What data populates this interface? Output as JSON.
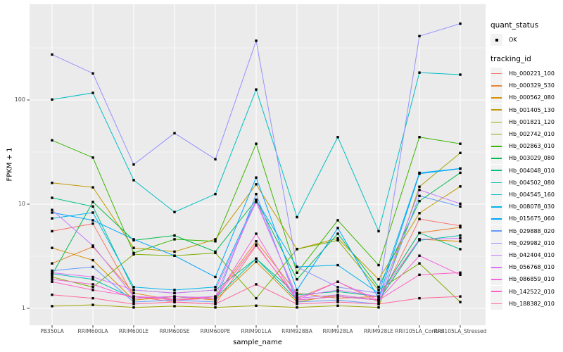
{
  "chart_data": {
    "type": "line",
    "title": "",
    "xlabel": "sample_name",
    "ylabel": "FPKM + 1",
    "y_scale": "log10",
    "y_ticks": [
      1,
      10,
      100
    ],
    "y_tick_labels": [
      "1",
      "10",
      "100"
    ],
    "y_minor": [
      3.1623,
      31.623,
      316.23
    ],
    "grid": "on",
    "legend_position": "right",
    "point_shape": "filled-square",
    "colors": {
      "panel_bg": "#EBEBEB",
      "grid_major": "#FFFFFF",
      "grid_minor": "#FFFFFF",
      "tick_text": "#4D4D4D",
      "tick_mark": "#333333",
      "point": "#000000",
      "legend_key_bg": "#F2F2F2"
    },
    "legend": {
      "quant_status_title": "quant_status",
      "quant_status_items": [
        "OK"
      ],
      "tracking_title": "tracking_id"
    },
    "categories": [
      "PB350LA",
      "RRIM600LA",
      "RRIM600LE",
      "RRIM600SE",
      "RRIM600PE",
      "RRIM901LA",
      "RRIM928BA",
      "RRIM928LA",
      "RRIM928LE",
      "RRII105LA_Control",
      "RRII105LA_Stressed"
    ],
    "series": [
      {
        "name": "Hb_000221_100",
        "color": "#F8766D",
        "values": [
          5.5,
          6.5,
          1.3,
          1.15,
          1.1,
          4.0,
          1.25,
          1.8,
          1.15,
          7.2,
          6.2
        ]
      },
      {
        "name": "Hb_000329_530",
        "color": "#EA8331",
        "values": [
          2.7,
          3.9,
          1.4,
          1.2,
          1.3,
          4.4,
          1.4,
          1.25,
          1.3,
          5.3,
          6.0
        ]
      },
      {
        "name": "Hb_000562_080",
        "color": "#D89000",
        "values": [
          3.8,
          2.9,
          1.2,
          1.3,
          1.2,
          2.8,
          1.15,
          1.35,
          1.2,
          4.6,
          4.4
        ]
      },
      {
        "name": "Hb_001405_130",
        "color": "#C09B00",
        "values": [
          16,
          14.5,
          3.8,
          3.5,
          4.6,
          15.5,
          3.7,
          4.7,
          1.9,
          8.2,
          14.8
        ]
      },
      {
        "name": "Hb_001821_120",
        "color": "#A3A500",
        "values": [
          1.05,
          1.08,
          1.02,
          1.05,
          1.02,
          1.06,
          1.02,
          1.06,
          1.02,
          14.7,
          31
        ]
      },
      {
        "name": "Hb_002742_010",
        "color": "#7CAE00",
        "values": [
          2.0,
          1.6,
          3.3,
          3.2,
          3.4,
          1.25,
          3.7,
          4.5,
          1.5,
          2.7,
          1.15
        ]
      },
      {
        "name": "Hb_002863_010",
        "color": "#39B600",
        "values": [
          41,
          28,
          3.4,
          4.6,
          4.4,
          38,
          2.2,
          7.0,
          2.6,
          44,
          38
        ]
      },
      {
        "name": "Hb_003029_080",
        "color": "#00BB4E",
        "values": [
          2.1,
          10.5,
          4.5,
          5.0,
          3.5,
          11,
          1.9,
          5.2,
          1.6,
          10.7,
          20
        ]
      },
      {
        "name": "Hb_004048_010",
        "color": "#00C087",
        "values": [
          11.5,
          9.5,
          1.5,
          1.4,
          1.5,
          3.0,
          1.35,
          1.45,
          1.3,
          5.3,
          3.7
        ]
      },
      {
        "name": "Hb_004502_080",
        "color": "#00C0AF",
        "values": [
          2.15,
          1.9,
          1.25,
          1.3,
          1.25,
          3.0,
          1.2,
          1.3,
          1.2,
          4.5,
          5.0
        ]
      },
      {
        "name": "Hb_004545_160",
        "color": "#00BFC4",
        "values": [
          101,
          117,
          17,
          8.4,
          12.5,
          126,
          7.5,
          44,
          5.5,
          183,
          175
        ]
      },
      {
        "name": "Hb_008078_030",
        "color": "#00B4F0",
        "values": [
          7.3,
          8.3,
          1.6,
          1.5,
          1.6,
          11,
          2.5,
          2.6,
          1.4,
          20,
          22
        ]
      },
      {
        "name": "Hb_015675_060",
        "color": "#00A5FF",
        "values": [
          8.3,
          7.0,
          4.6,
          3.2,
          2.0,
          18,
          1.5,
          5.9,
          1.25,
          19.6,
          21.9
        ]
      },
      {
        "name": "Hb_029888_020",
        "color": "#619CFF",
        "values": [
          2.3,
          2.5,
          1.15,
          1.2,
          1.15,
          12.5,
          1.15,
          1.2,
          1.1,
          12,
          9.5
        ]
      },
      {
        "name": "Hb_029982_010",
        "color": "#9590FF",
        "values": [
          273,
          180,
          24,
          48,
          27,
          370,
          2.5,
          1.6,
          1.4,
          410,
          540
        ]
      },
      {
        "name": "Hb_042404_010",
        "color": "#C77CFF",
        "values": [
          8.8,
          4.0,
          1.3,
          1.25,
          1.3,
          11,
          1.25,
          1.35,
          1.2,
          13.7,
          10.1
        ]
      },
      {
        "name": "Hb_056768_010",
        "color": "#DB72FB",
        "values": [
          2.2,
          2.0,
          1.5,
          1.4,
          1.5,
          10.5,
          1.3,
          1.5,
          1.3,
          4.6,
          4.7
        ]
      },
      {
        "name": "Hb_086859_010",
        "color": "#F763E0",
        "values": [
          1.9,
          1.7,
          1.25,
          1.3,
          1.25,
          5.2,
          1.2,
          1.8,
          1.2,
          3.2,
          2.1
        ]
      },
      {
        "name": "Hb_142522_010",
        "color": "#FF61C7",
        "values": [
          1.8,
          1.5,
          1.3,
          1.2,
          1.25,
          4.1,
          1.2,
          1.3,
          1.2,
          2.1,
          2.2
        ]
      },
      {
        "name": "Hb_188382_010",
        "color": "#FF689E",
        "values": [
          1.35,
          1.25,
          1.1,
          1.15,
          1.1,
          1.7,
          1.1,
          1.15,
          1.1,
          1.25,
          1.3
        ]
      }
    ]
  }
}
